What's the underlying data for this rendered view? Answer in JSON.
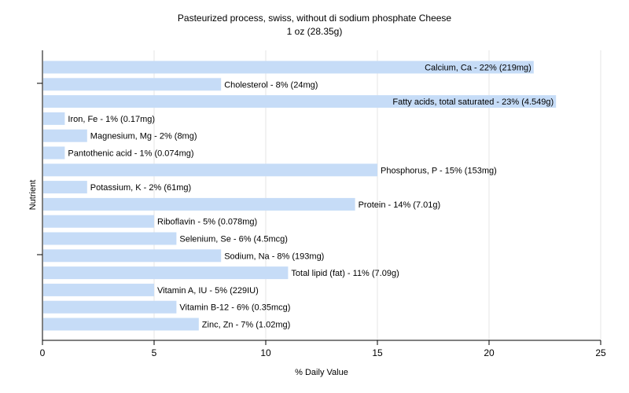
{
  "chart_data": {
    "type": "bar",
    "orientation": "horizontal",
    "title": "Pasteurized process, swiss, without di sodium phosphate Cheese",
    "subtitle": "1 oz (28.35g)",
    "xlabel": "% Daily Value",
    "ylabel": "Nutrient",
    "xlim": [
      0,
      25
    ],
    "xticks": [
      "0",
      "5",
      "10",
      "15",
      "20",
      "25"
    ],
    "grid": true,
    "bar_color": "#c6dcf7",
    "categories": [
      "Calcium, Ca",
      "Cholesterol",
      "Fatty acids, total saturated",
      "Iron, Fe",
      "Magnesium, Mg",
      "Pantothenic acid",
      "Phosphorus, P",
      "Potassium, K",
      "Protein",
      "Riboflavin",
      "Selenium, Se",
      "Sodium, Na",
      "Total lipid (fat)",
      "Vitamin A, IU",
      "Vitamin B-12",
      "Zinc, Zn"
    ],
    "values": [
      22,
      8,
      23,
      1,
      2,
      1,
      15,
      2,
      14,
      5,
      6,
      8,
      11,
      5,
      6,
      7
    ],
    "labels": [
      "Calcium, Ca - 22% (219mg)",
      "Cholesterol - 8% (24mg)",
      "Fatty acids, total saturated - 23% (4.549g)",
      "Iron, Fe - 1% (0.17mg)",
      "Magnesium, Mg - 2% (8mg)",
      "Pantothenic acid - 1% (0.074mg)",
      "Phosphorus, P - 15% (153mg)",
      "Potassium, K - 2% (61mg)",
      "Protein - 14% (7.01g)",
      "Riboflavin - 5% (0.078mg)",
      "Selenium, Se - 6% (4.5mcg)",
      "Sodium, Na - 8% (193mg)",
      "Total lipid (fat) - 11% (7.09g)",
      "Vitamin A, IU - 5% (229IU)",
      "Vitamin B-12 - 6% (0.35mcg)",
      "Zinc, Zn - 7% (1.02mg)"
    ]
  }
}
